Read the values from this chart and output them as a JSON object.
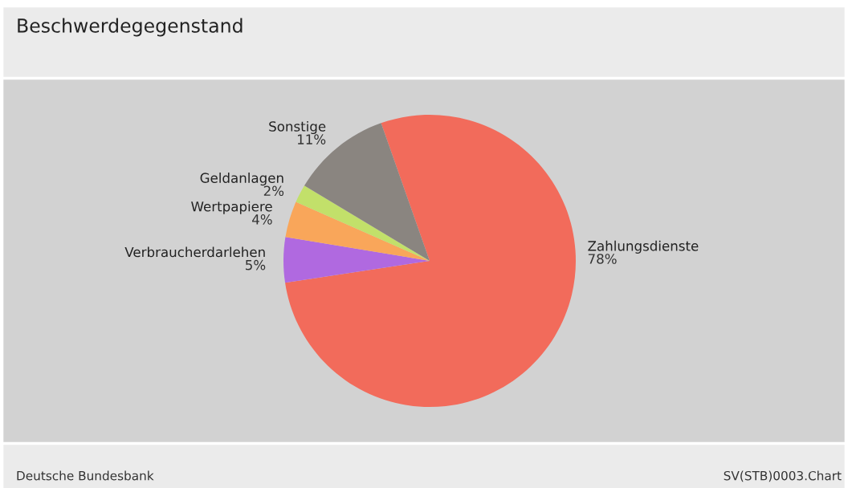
{
  "chart_data": {
    "type": "pie",
    "title": "Beschwerdegegenstand",
    "categories": [
      "Zahlungsdienste",
      "Verbraucherdarlehen",
      "Wertpapiere",
      "Geldanlagen",
      "Sonstige"
    ],
    "values": [
      78,
      5,
      4,
      2,
      11
    ],
    "colors": [
      "#f26b5b",
      "#b069e0",
      "#f9a65a",
      "#c2e06a",
      "#8a8580"
    ],
    "value_labels": [
      "78%",
      "5%",
      "4%",
      "2%",
      "11%"
    ],
    "annotations": [
      "Deutsche Bundesbank",
      "SV(STB)0003.Chart"
    ]
  }
}
